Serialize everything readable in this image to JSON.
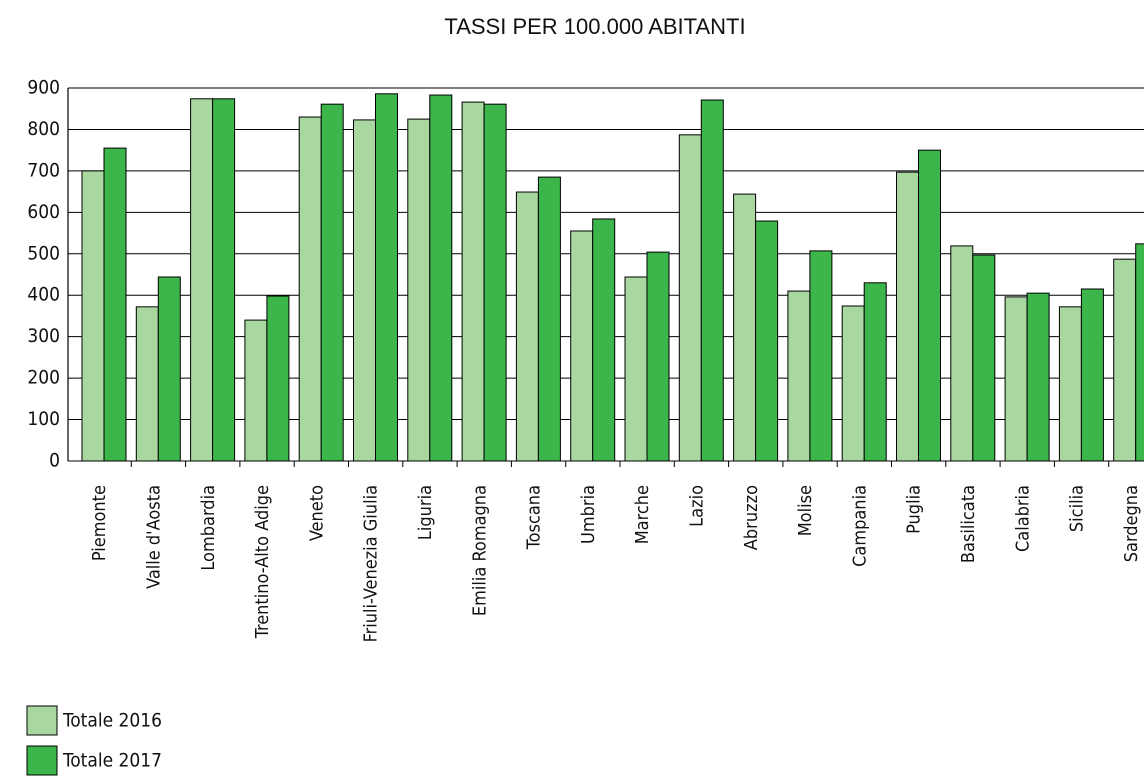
{
  "chart_data": {
    "type": "bar",
    "title": "TASSI PER 100.000 ABITANTI",
    "categories": [
      "Piemonte",
      "Valle d'Aosta",
      "Lombardia",
      "Trentino-Alto Adige",
      "Veneto",
      "Friuli-Venezia Giulia",
      "Liguria",
      "Emilia Romagna",
      "Toscana",
      "Umbria",
      "Marche",
      "Lazio",
      "Abruzzo",
      "Molise",
      "Campania",
      "Puglia",
      "Basilicata",
      "Calabria",
      "Sicilia",
      "Sardegna"
    ],
    "series": [
      {
        "name": "Totale 2016",
        "color": "#a8d8a0",
        "values": [
          700,
          372,
          874,
          340,
          830,
          823,
          825,
          866,
          649,
          555,
          444,
          787,
          644,
          410,
          374,
          697,
          519,
          396,
          372,
          487
        ]
      },
      {
        "name": "Totale 2017",
        "color": "#3cb54a",
        "values": [
          755,
          444,
          874,
          398,
          861,
          886,
          883,
          861,
          685,
          584,
          504,
          871,
          579,
          507,
          430,
          750,
          497,
          405,
          415,
          524
        ]
      }
    ],
    "ylim": [
      0,
      900
    ],
    "yticks": [
      0,
      100,
      200,
      300,
      400,
      500,
      600,
      700,
      800,
      900
    ],
    "grid": true,
    "legend": "bottom-left"
  }
}
